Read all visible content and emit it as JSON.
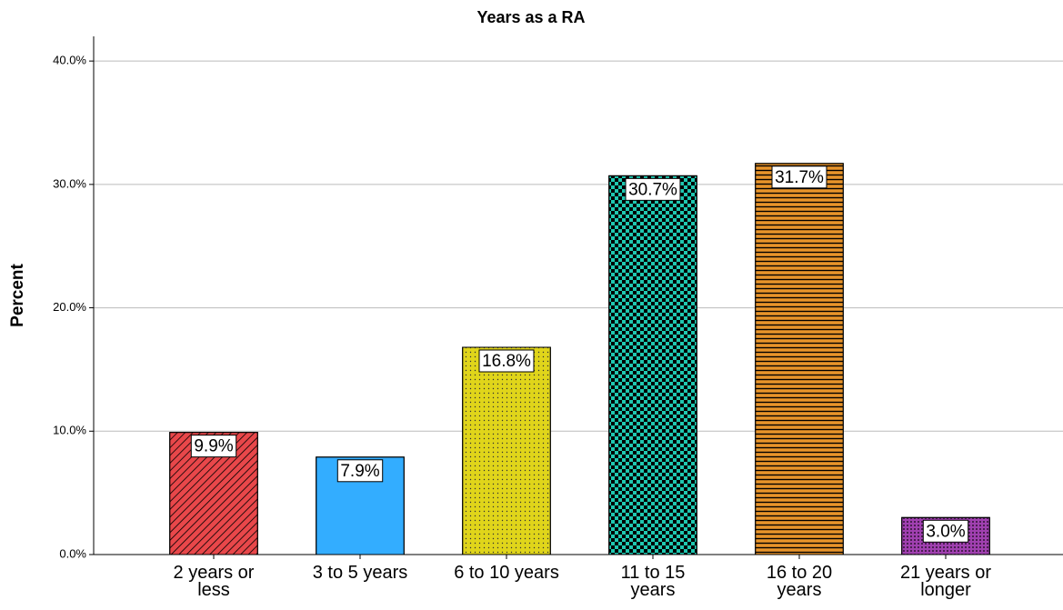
{
  "chart_data": {
    "type": "bar",
    "title": "Years as a RA",
    "y_label": "Percent",
    "categories": [
      "2 years or\nless",
      "3 to 5 years",
      "6 to 10 years",
      "11 to 15\nyears",
      "16 to 20\nyears",
      "21 years or\nlonger"
    ],
    "values": [
      9.9,
      7.9,
      16.8,
      30.7,
      31.7,
      3.0
    ],
    "value_labels": [
      "9.9%",
      "7.9%",
      "16.8%",
      "30.7%",
      "31.7%",
      "3.0%"
    ],
    "colors": [
      "#e8474a",
      "#33adff",
      "#e0d51a",
      "#1fc7b0",
      "#e8942a",
      "#a040b0"
    ],
    "ylim": [
      0,
      42
    ],
    "yticks": [
      {
        "value": 0,
        "label": "0.0%"
      },
      {
        "value": 10,
        "label": "10.0%"
      },
      {
        "value": 20,
        "label": "20.0%"
      },
      {
        "value": 30,
        "label": "30.0%"
      },
      {
        "value": 40,
        "label": "40.0%"
      }
    ],
    "grid": true
  }
}
